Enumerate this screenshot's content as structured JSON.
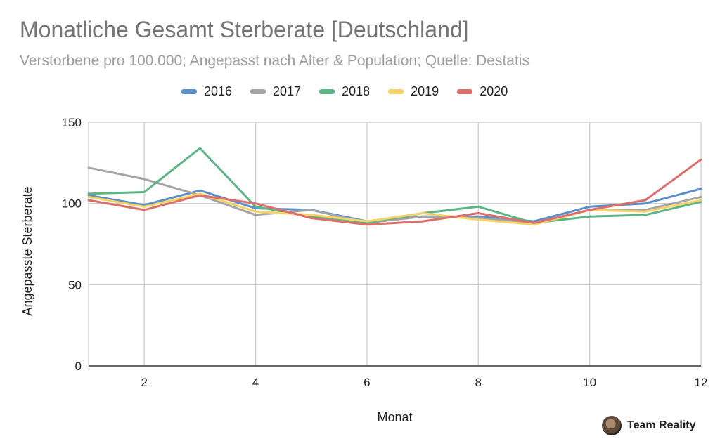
{
  "chart_data": {
    "type": "line",
    "title": "Monatliche Gesamt Sterberate [Deutschland]",
    "subtitle": "Verstorbene pro 100.000; Angepasst nach Alter & Population; Quelle: Destatis",
    "xlabel": "Monat",
    "ylabel": "Angepasste Sterberate",
    "x": [
      1,
      2,
      3,
      4,
      5,
      6,
      7,
      8,
      9,
      10,
      11,
      12
    ],
    "xlim": [
      1,
      12
    ],
    "ylim": [
      0,
      150
    ],
    "xticks": [
      "2",
      "4",
      "6",
      "8",
      "10",
      "12"
    ],
    "yticks": [
      "0",
      "50",
      "100",
      "150"
    ],
    "grid": true,
    "legend_position": "top",
    "series": [
      {
        "name": "2016",
        "color": "#5b8fc9",
        "values": [
          105,
          99,
          108,
          97,
          96,
          89,
          92,
          92,
          89,
          98,
          100,
          109
        ]
      },
      {
        "name": "2017",
        "color": "#a5a5a5",
        "values": [
          122,
          115,
          105,
          93,
          96,
          88,
          92,
          91,
          88,
          96,
          96,
          104
        ]
      },
      {
        "name": "2018",
        "color": "#5cb585",
        "values": [
          106,
          107,
          134,
          98,
          92,
          88,
          94,
          98,
          88,
          92,
          93,
          101
        ]
      },
      {
        "name": "2019",
        "color": "#f6d368",
        "values": [
          104,
          98,
          106,
          95,
          93,
          89,
          94,
          90,
          87,
          96,
          95,
          102
        ]
      },
      {
        "name": "2020",
        "color": "#dd6f6a",
        "values": [
          102,
          96,
          105,
          100,
          91,
          87,
          89,
          94,
          88,
          96,
          102,
          127
        ]
      }
    ]
  },
  "watermark": {
    "text": "Team Reality"
  }
}
